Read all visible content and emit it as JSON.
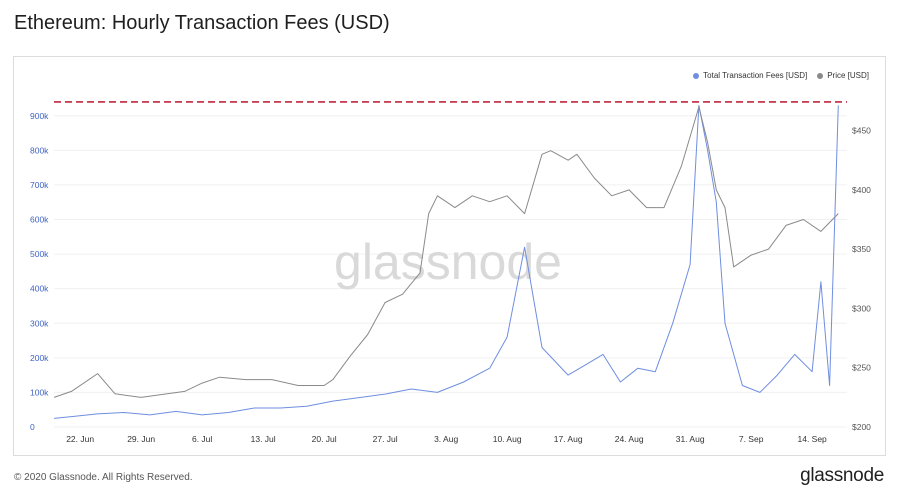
{
  "title": "Ethereum: Hourly Transaction Fees (USD)",
  "footer": {
    "copyright": "© 2020 Glassnode. All Rights Reserved.",
    "brand": "glassnode"
  },
  "watermark": "glassnode",
  "colors": {
    "fees": "#6f8ee0",
    "price": "#8a8a8a",
    "threshold": "#b3001b",
    "axis_left": "#3f62c6",
    "axis_right": "#555555"
  },
  "chart_data": {
    "type": "line",
    "x_start": "2020-06-19",
    "x_end": "2020-09-18",
    "x_ticks": [
      {
        "date": "2020-06-22",
        "label": "22. Jun"
      },
      {
        "date": "2020-06-29",
        "label": "29. Jun"
      },
      {
        "date": "2020-07-06",
        "label": "6. Jul"
      },
      {
        "date": "2020-07-13",
        "label": "13. Jul"
      },
      {
        "date": "2020-07-20",
        "label": "20. Jul"
      },
      {
        "date": "2020-07-27",
        "label": "27. Jul"
      },
      {
        "date": "2020-08-03",
        "label": "3. Aug"
      },
      {
        "date": "2020-08-10",
        "label": "10. Aug"
      },
      {
        "date": "2020-08-17",
        "label": "17. Aug"
      },
      {
        "date": "2020-08-24",
        "label": "24. Aug"
      },
      {
        "date": "2020-08-31",
        "label": "31. Aug"
      },
      {
        "date": "2020-09-07",
        "label": "7. Sep"
      },
      {
        "date": "2020-09-14",
        "label": "14. Sep"
      }
    ],
    "y_left": {
      "range": [
        0,
        960000
      ],
      "ticks": [
        0,
        100000,
        200000,
        300000,
        400000,
        500000,
        600000,
        700000,
        800000,
        900000
      ],
      "tick_labels": [
        "0",
        "100k",
        "200k",
        "300k",
        "400k",
        "500k",
        "600k",
        "700k",
        "800k",
        "900k"
      ]
    },
    "y_right": {
      "range": [
        200,
        480
      ],
      "ticks": [
        200,
        250,
        300,
        350,
        400,
        450
      ],
      "tick_labels": [
        "$200",
        "$250",
        "$300",
        "$350",
        "$400",
        "$450"
      ]
    },
    "threshold": {
      "value": 940000
    },
    "legend": {
      "placement": "top-right"
    },
    "series": [
      {
        "name": "Total Transaction Fees [USD]",
        "axis": "left",
        "points": [
          [
            "2020-06-19",
            25000
          ],
          [
            "2020-06-21",
            30000
          ],
          [
            "2020-06-24",
            38000
          ],
          [
            "2020-06-27",
            42000
          ],
          [
            "2020-06-30",
            35000
          ],
          [
            "2020-07-03",
            45000
          ],
          [
            "2020-07-06",
            35000
          ],
          [
            "2020-07-09",
            42000
          ],
          [
            "2020-07-12",
            55000
          ],
          [
            "2020-07-15",
            55000
          ],
          [
            "2020-07-18",
            60000
          ],
          [
            "2020-07-21",
            75000
          ],
          [
            "2020-07-24",
            85000
          ],
          [
            "2020-07-27",
            95000
          ],
          [
            "2020-07-30",
            110000
          ],
          [
            "2020-08-02",
            100000
          ],
          [
            "2020-08-05",
            130000
          ],
          [
            "2020-08-08",
            170000
          ],
          [
            "2020-08-10",
            260000
          ],
          [
            "2020-08-12",
            520000
          ],
          [
            "2020-08-14",
            230000
          ],
          [
            "2020-08-17",
            150000
          ],
          [
            "2020-08-19",
            180000
          ],
          [
            "2020-08-21",
            210000
          ],
          [
            "2020-08-23",
            130000
          ],
          [
            "2020-08-25",
            170000
          ],
          [
            "2020-08-27",
            160000
          ],
          [
            "2020-08-29",
            300000
          ],
          [
            "2020-08-31",
            470000
          ],
          [
            "2020-09-01",
            930000
          ],
          [
            "2020-09-02",
            800000
          ],
          [
            "2020-09-03",
            650000
          ],
          [
            "2020-09-04",
            300000
          ],
          [
            "2020-09-06",
            120000
          ],
          [
            "2020-09-08",
            100000
          ],
          [
            "2020-09-10",
            150000
          ],
          [
            "2020-09-12",
            210000
          ],
          [
            "2020-09-14",
            160000
          ],
          [
            "2020-09-15",
            420000
          ],
          [
            "2020-09-16",
            120000
          ],
          [
            "2020-09-17",
            930000
          ]
        ]
      },
      {
        "name": "Price [USD]",
        "axis": "right",
        "points": [
          [
            "2020-06-19",
            225
          ],
          [
            "2020-06-21",
            230
          ],
          [
            "2020-06-23",
            240
          ],
          [
            "2020-06-24",
            245
          ],
          [
            "2020-06-26",
            228
          ],
          [
            "2020-06-29",
            225
          ],
          [
            "2020-07-02",
            228
          ],
          [
            "2020-07-04",
            230
          ],
          [
            "2020-07-06",
            237
          ],
          [
            "2020-07-08",
            242
          ],
          [
            "2020-07-11",
            240
          ],
          [
            "2020-07-14",
            240
          ],
          [
            "2020-07-17",
            235
          ],
          [
            "2020-07-20",
            235
          ],
          [
            "2020-07-21",
            240
          ],
          [
            "2020-07-23",
            260
          ],
          [
            "2020-07-25",
            278
          ],
          [
            "2020-07-27",
            305
          ],
          [
            "2020-07-29",
            312
          ],
          [
            "2020-07-31",
            330
          ],
          [
            "2020-08-01",
            380
          ],
          [
            "2020-08-02",
            395
          ],
          [
            "2020-08-04",
            385
          ],
          [
            "2020-08-06",
            395
          ],
          [
            "2020-08-08",
            390
          ],
          [
            "2020-08-10",
            395
          ],
          [
            "2020-08-12",
            380
          ],
          [
            "2020-08-14",
            430
          ],
          [
            "2020-08-15",
            433
          ],
          [
            "2020-08-17",
            425
          ],
          [
            "2020-08-18",
            430
          ],
          [
            "2020-08-20",
            410
          ],
          [
            "2020-08-22",
            395
          ],
          [
            "2020-08-24",
            400
          ],
          [
            "2020-08-26",
            385
          ],
          [
            "2020-08-28",
            385
          ],
          [
            "2020-08-30",
            420
          ],
          [
            "2020-09-01",
            470
          ],
          [
            "2020-09-02",
            440
          ],
          [
            "2020-09-03",
            400
          ],
          [
            "2020-09-04",
            385
          ],
          [
            "2020-09-05",
            335
          ],
          [
            "2020-09-07",
            345
          ],
          [
            "2020-09-09",
            350
          ],
          [
            "2020-09-11",
            370
          ],
          [
            "2020-09-13",
            375
          ],
          [
            "2020-09-15",
            365
          ],
          [
            "2020-09-17",
            380
          ]
        ]
      }
    ]
  }
}
